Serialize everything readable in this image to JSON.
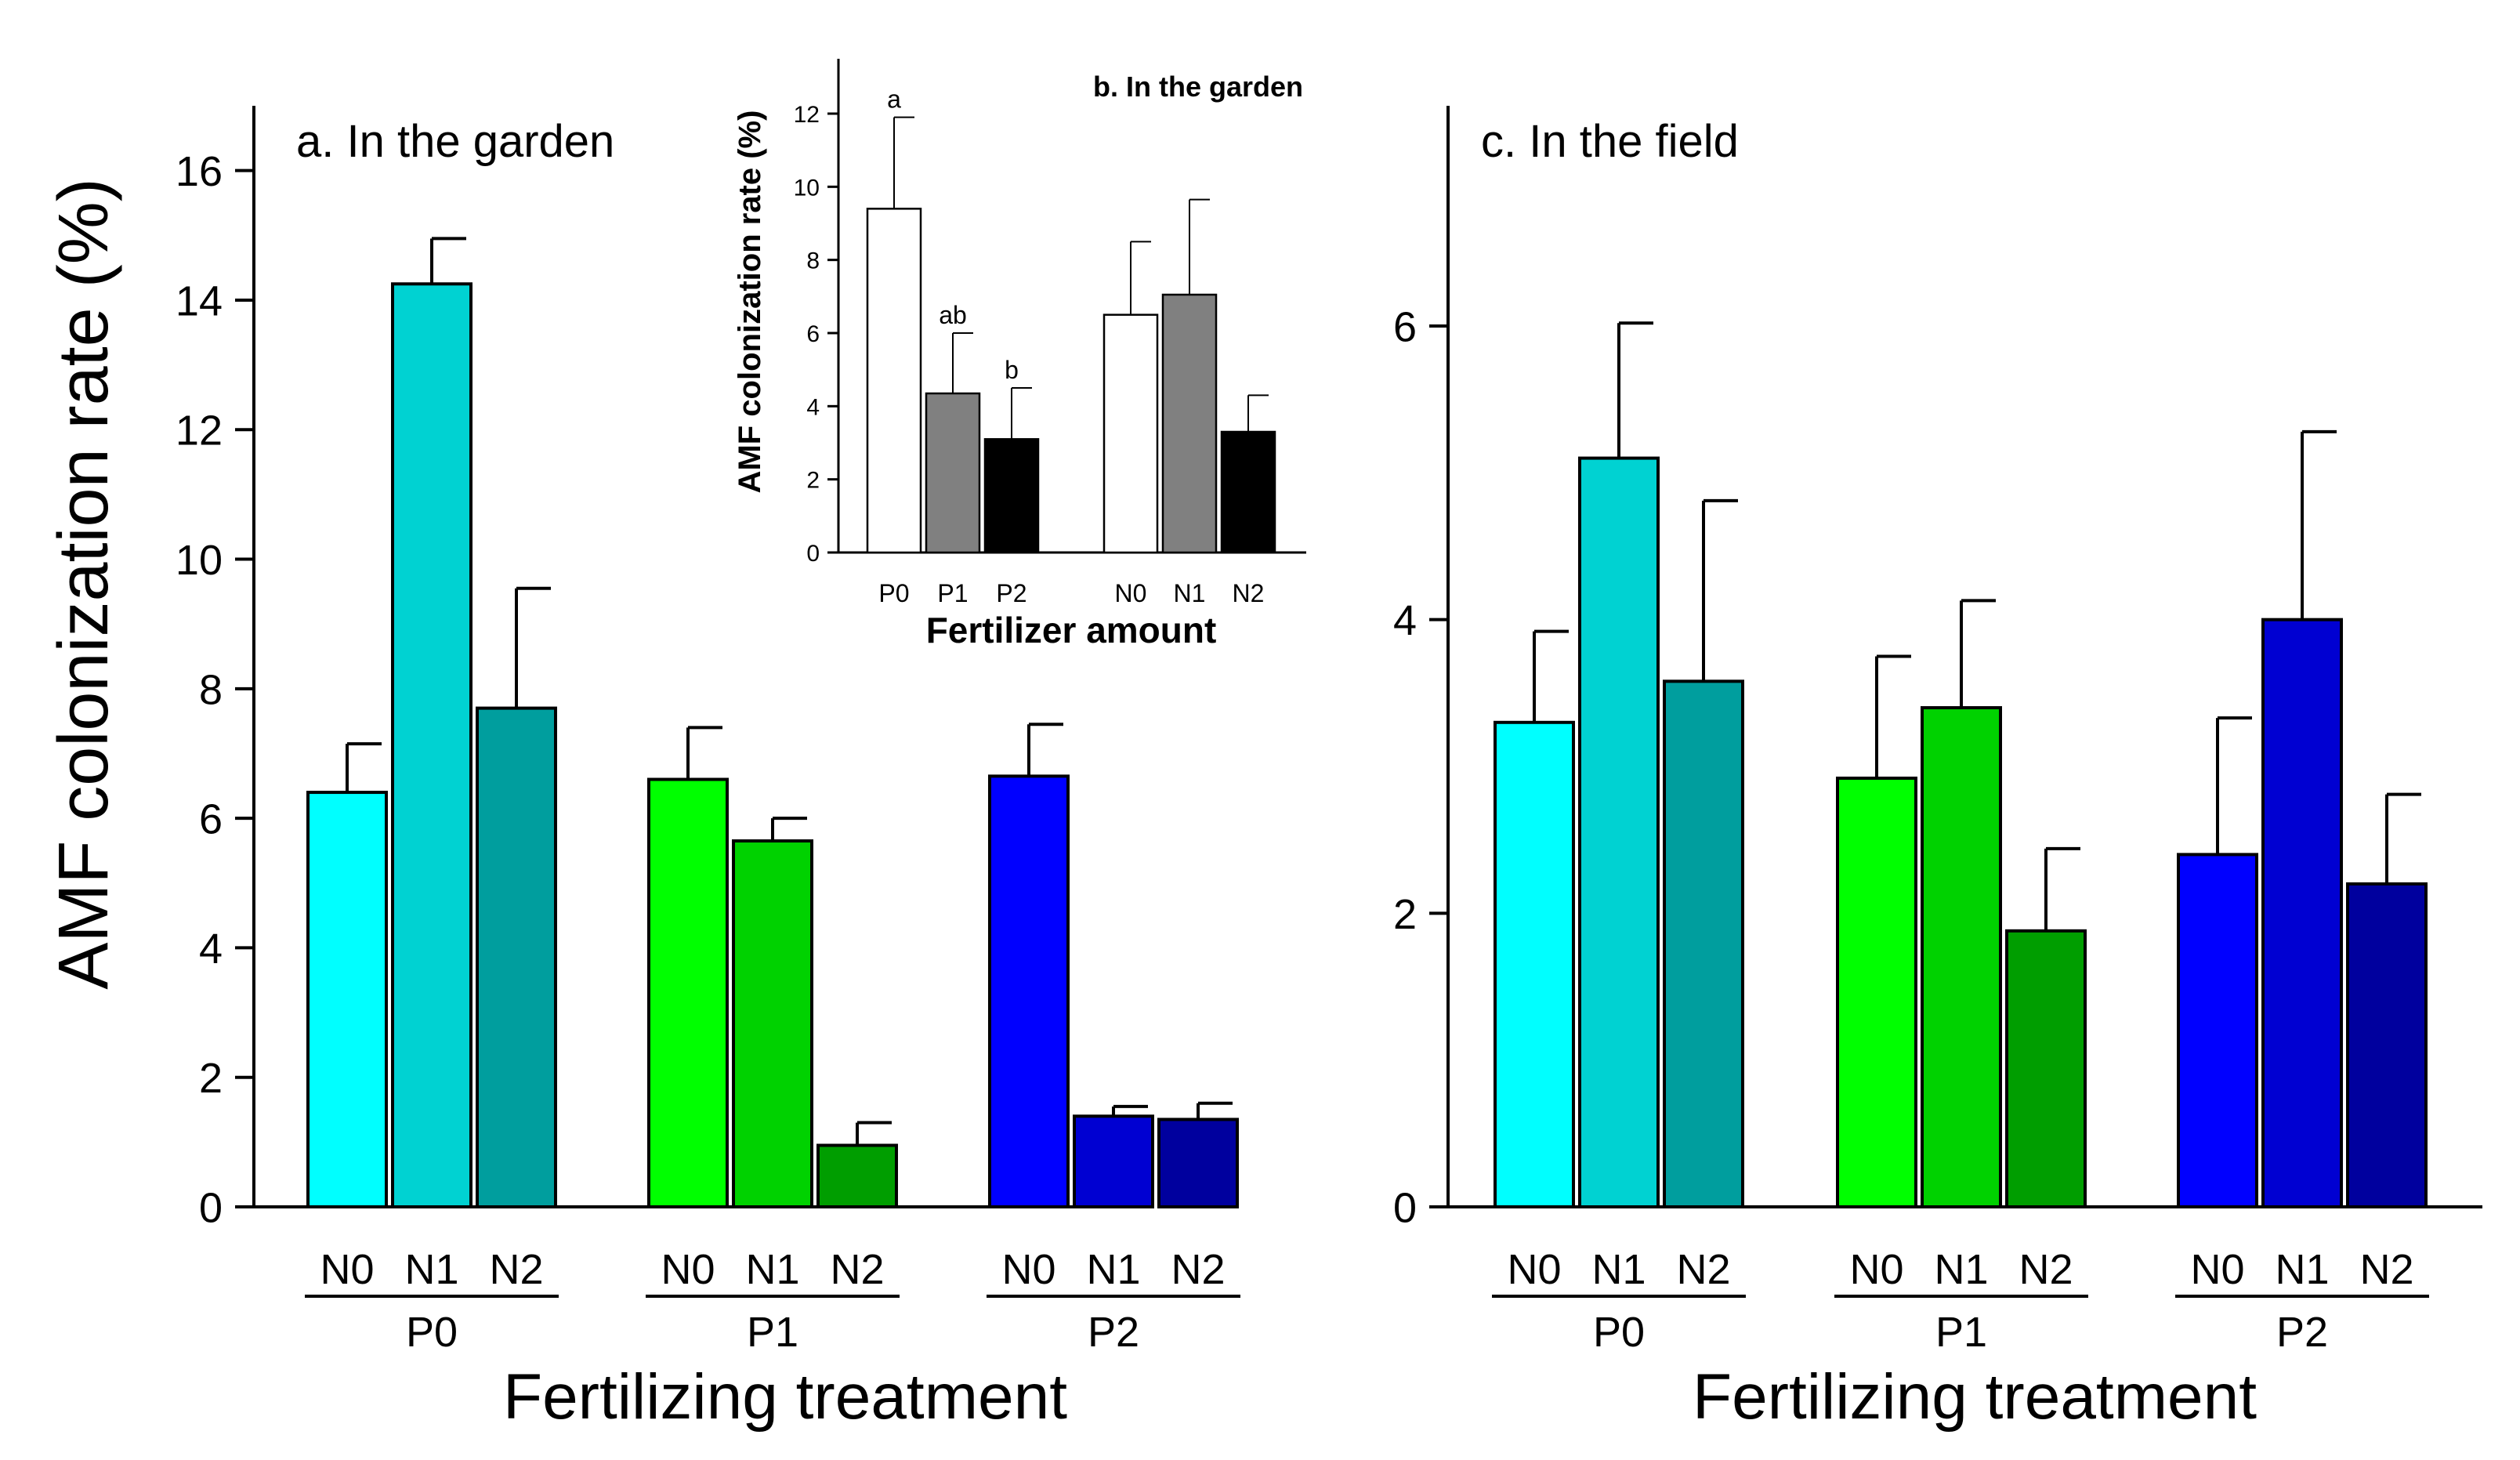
{
  "chart_data": [
    {
      "panel": "a",
      "type": "bar",
      "title": "a. In the garden",
      "ylabel": "AMF colonization rate (%)",
      "xlabel": "Fertilizing treatment",
      "ylim": [
        0,
        17
      ],
      "yticks": [
        0,
        2,
        4,
        6,
        8,
        10,
        12,
        14,
        16
      ],
      "groups": [
        {
          "label": "P0",
          "bars": [
            {
              "label": "N0",
              "value": 6.4,
              "error": 0.75,
              "color": "#00ffff"
            },
            {
              "label": "N1",
              "value": 14.25,
              "error": 0.7,
              "color": "#00d2d2"
            },
            {
              "label": "N2",
              "value": 7.7,
              "error": 1.85,
              "color": "#009e9e"
            }
          ]
        },
        {
          "label": "P1",
          "bars": [
            {
              "label": "N0",
              "value": 6.6,
              "error": 0.8,
              "color": "#00ff00"
            },
            {
              "label": "N1",
              "value": 5.65,
              "error": 0.35,
              "color": "#00d200"
            },
            {
              "label": "N2",
              "value": 0.95,
              "error": 0.35,
              "color": "#009e00"
            }
          ]
        },
        {
          "label": "P2",
          "bars": [
            {
              "label": "N0",
              "value": 6.65,
              "error": 0.8,
              "color": "#0000ff"
            },
            {
              "label": "N1",
              "value": 1.4,
              "error": 0.15,
              "color": "#0000d2"
            },
            {
              "label": "N2",
              "value": 1.35,
              "error": 0.25,
              "color": "#00009e"
            }
          ]
        }
      ]
    },
    {
      "panel": "b",
      "type": "bar",
      "title": "b. In the garden",
      "ylabel": "AMF colonization rate (%)",
      "xlabel": "Fertilizer amount",
      "ylim": [
        0,
        13.5
      ],
      "yticks": [
        0,
        2,
        4,
        6,
        8,
        10,
        12
      ],
      "bars": [
        {
          "label": "P0",
          "value": 9.4,
          "error": 2.5,
          "color": "#ffffff",
          "annotation": "a"
        },
        {
          "label": "P1",
          "value": 4.35,
          "error": 1.65,
          "color": "#808080",
          "annotation": "ab"
        },
        {
          "label": "P2",
          "value": 3.1,
          "error": 1.4,
          "color": "#000000",
          "annotation": "b"
        },
        {
          "label": "N0",
          "value": 6.5,
          "error": 2.0,
          "color": "#ffffff",
          "annotation": ""
        },
        {
          "label": "N1",
          "value": 7.05,
          "error": 2.6,
          "color": "#808080",
          "annotation": ""
        },
        {
          "label": "N2",
          "value": 3.3,
          "error": 1.0,
          "color": "#000000",
          "annotation": ""
        }
      ]
    },
    {
      "panel": "c",
      "type": "bar",
      "title": "c. In the field",
      "ylabel": "",
      "xlabel": "Fertilizing treatment",
      "ylim": [
        0,
        7.5
      ],
      "yticks": [
        0,
        2,
        4,
        6
      ],
      "groups": [
        {
          "label": "P0",
          "bars": [
            {
              "label": "N0",
              "value": 3.3,
              "error": 0.62,
              "color": "#00ffff"
            },
            {
              "label": "N1",
              "value": 5.1,
              "error": 0.92,
              "color": "#00d2d2"
            },
            {
              "label": "N2",
              "value": 3.58,
              "error": 1.23,
              "color": "#009e9e"
            }
          ]
        },
        {
          "label": "P1",
          "bars": [
            {
              "label": "N0",
              "value": 2.92,
              "error": 0.83,
              "color": "#00ff00"
            },
            {
              "label": "N1",
              "value": 3.4,
              "error": 0.73,
              "color": "#00d200"
            },
            {
              "label": "N2",
              "value": 1.88,
              "error": 0.56,
              "color": "#009e00"
            }
          ]
        },
        {
          "label": "P2",
          "bars": [
            {
              "label": "N0",
              "value": 2.4,
              "error": 0.93,
              "color": "#0000ff"
            },
            {
              "label": "N1",
              "value": 4.0,
              "error": 1.28,
              "color": "#0000d2"
            },
            {
              "label": "N2",
              "value": 2.2,
              "error": 0.61,
              "color": "#00009e"
            }
          ]
        }
      ]
    }
  ]
}
